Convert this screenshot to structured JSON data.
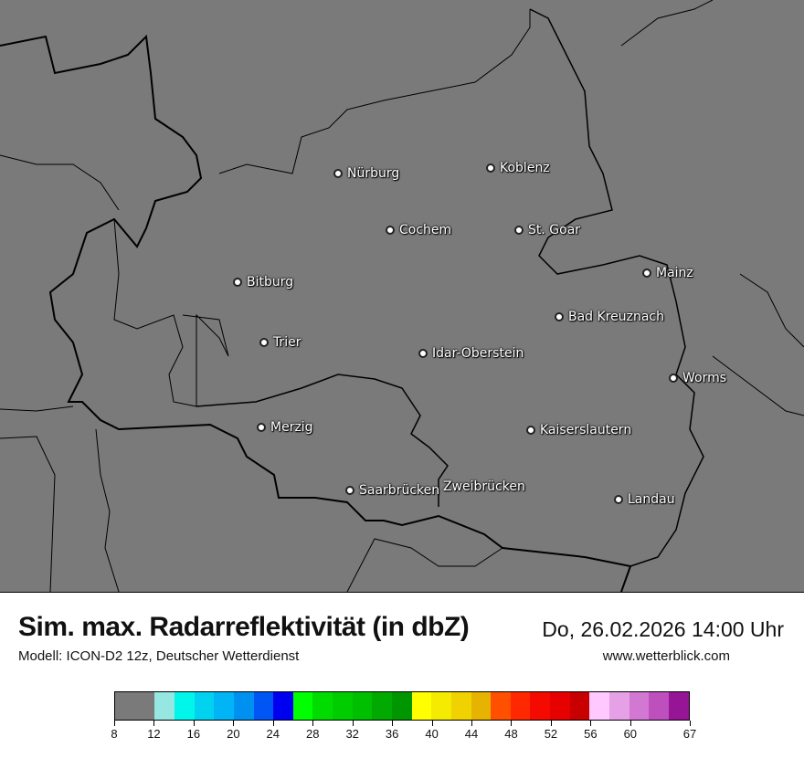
{
  "map": {
    "background_color": "#7a7a7a",
    "cities": [
      {
        "name": "Nürburg"
      },
      {
        "name": "Koblenz"
      },
      {
        "name": "Cochem"
      },
      {
        "name": "St. Goar"
      },
      {
        "name": "Bitburg"
      },
      {
        "name": "Mainz"
      },
      {
        "name": "Bad Kreuznach"
      },
      {
        "name": "Trier"
      },
      {
        "name": "Idar-Oberstein"
      },
      {
        "name": "Worms"
      },
      {
        "name": "Merzig"
      },
      {
        "name": "Kaiserslautern"
      },
      {
        "name": "Saarbrücken"
      },
      {
        "name": "Zweibrücken"
      },
      {
        "name": "Landau"
      }
    ]
  },
  "header": {
    "title": "Sim. max. Radarreflektivität (in dbZ)",
    "datetime": "Do, 26.02.2026 14:00 Uhr",
    "model": "Modell: ICON-D2 12z, Deutscher Wetterdienst",
    "website": "www.wetterblick.com"
  },
  "legend": {
    "unit": "dbZ",
    "range": [
      8,
      67
    ],
    "tick_labels": [
      "8",
      "12",
      "16",
      "20",
      "24",
      "28",
      "32",
      "36",
      "40",
      "44",
      "48",
      "52",
      "56",
      "60",
      "67"
    ],
    "colors": [
      "#7a7a7a",
      "#96e6e1",
      "#00f5eb",
      "#00d2f0",
      "#00b4f5",
      "#0091f0",
      "#0055f5",
      "#0000f0",
      "#00ff00",
      "#00dc00",
      "#00cd00",
      "#00be00",
      "#00aa00",
      "#009600",
      "#ffff00",
      "#f5eb00",
      "#f0d200",
      "#e6b400",
      "#ff5000",
      "#ff2800",
      "#f50a00",
      "#e60000",
      "#c80000",
      "#ffc8ff",
      "#e6a0e6",
      "#d278d2",
      "#be50be",
      "#961496"
    ]
  }
}
